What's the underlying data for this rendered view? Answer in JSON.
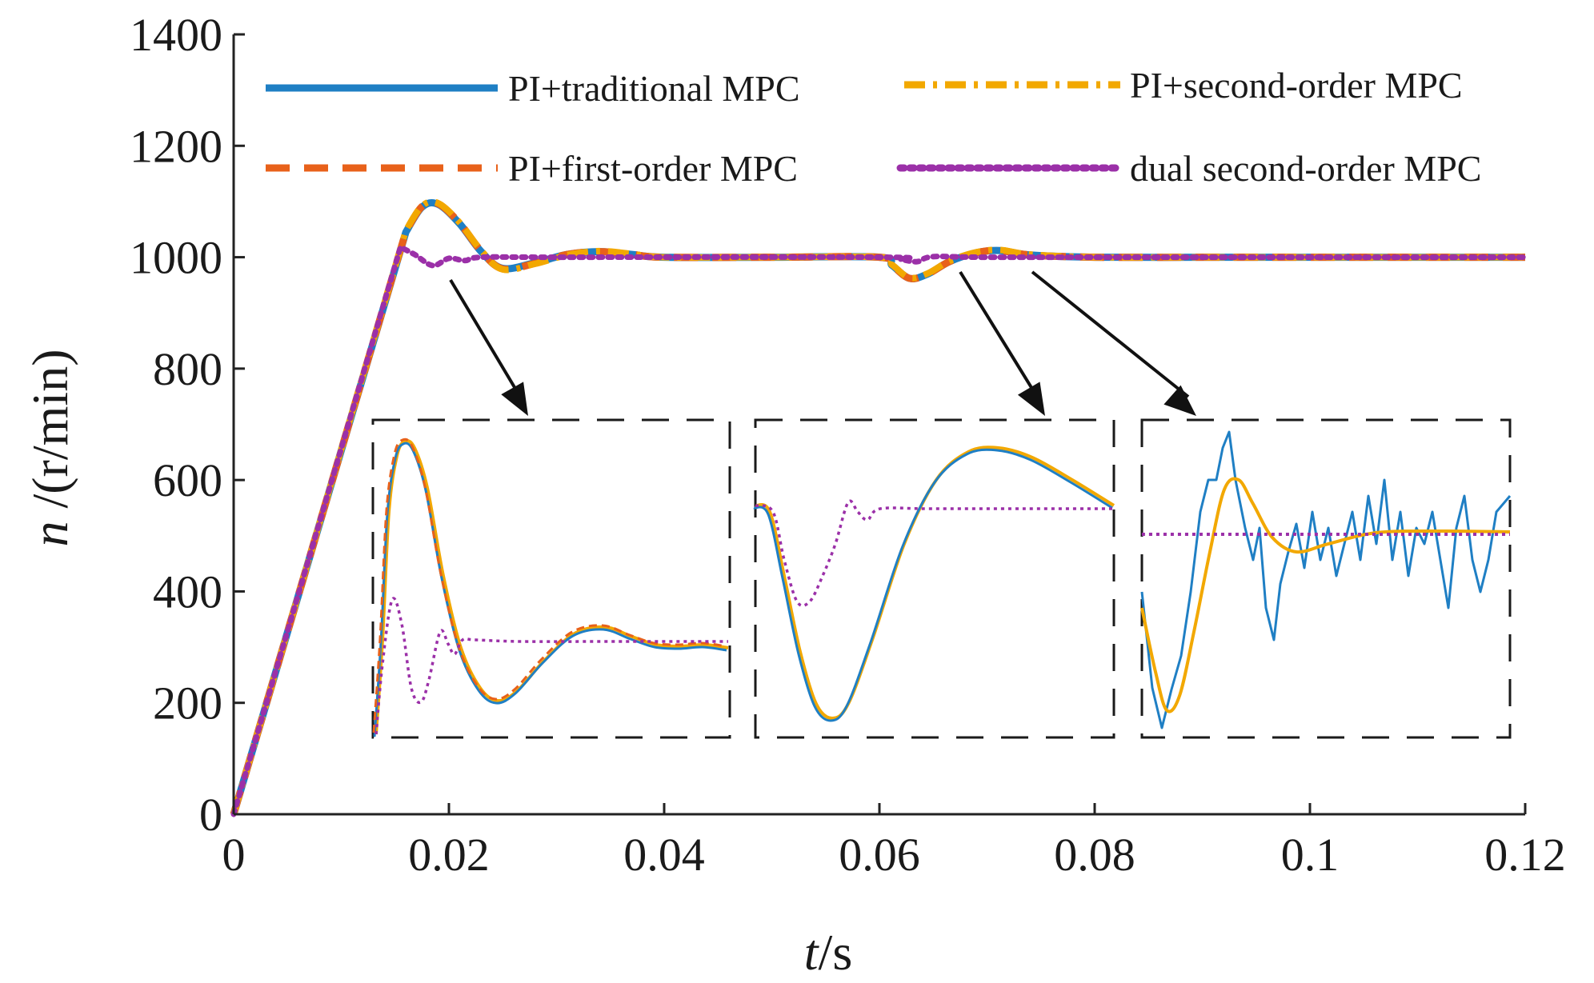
{
  "chart_data": {
    "type": "line",
    "title": "",
    "xlabel": {
      "var": "t",
      "unit": "/s"
    },
    "ylabel": {
      "var": "n",
      "unit": " /(r/min)"
    },
    "xlim": [
      0,
      0.12
    ],
    "ylim": [
      0,
      1400
    ],
    "xticks": [
      0,
      0.02,
      0.04,
      0.06,
      0.08,
      0.1,
      0.12
    ],
    "xtick_labels": [
      "0",
      "0.02",
      "0.04",
      "0.06",
      "0.08",
      "0.1",
      "0.12"
    ],
    "yticks": [
      0,
      200,
      400,
      600,
      800,
      1000,
      1200,
      1400
    ],
    "ytick_labels": [
      "0",
      "200",
      "400",
      "600",
      "800",
      "1000",
      "1200",
      "1400"
    ],
    "grid": false,
    "legend_position": "top",
    "series": [
      {
        "name": "PI+traditional MPC",
        "color": "#1f7fc4",
        "dash": "solid",
        "x": [
          0,
          0.016,
          0.0175,
          0.019,
          0.021,
          0.023,
          0.025,
          0.028,
          0.031,
          0.034,
          0.037,
          0.04,
          0.05,
          0.06,
          0.0612,
          0.0628,
          0.0645,
          0.0665,
          0.069,
          0.0712,
          0.074,
          0.08,
          0.09,
          0.1,
          0.11,
          0.12
        ],
        "y": [
          0,
          1045,
          1090,
          1095,
          1060,
          1010,
          980,
          990,
          1005,
          1010,
          1005,
          1000,
          1000,
          1000,
          985,
          962,
          970,
          992,
          1008,
          1012,
          1004,
          1000,
          1000,
          1000,
          1000,
          1000
        ]
      },
      {
        "name": "PI+second-order MPC",
        "color": "#f2a800",
        "dash": "dashdot",
        "x": [
          0,
          0.016,
          0.0175,
          0.019,
          0.021,
          0.023,
          0.025,
          0.028,
          0.031,
          0.034,
          0.037,
          0.04,
          0.05,
          0.06,
          0.0612,
          0.0628,
          0.0645,
          0.0665,
          0.069,
          0.0712,
          0.074,
          0.08,
          0.09,
          0.1,
          0.11,
          0.12
        ],
        "y": [
          0,
          1048,
          1092,
          1097,
          1062,
          1012,
          978,
          988,
          1004,
          1011,
          1006,
          1000,
          1000,
          1000,
          986,
          963,
          971,
          993,
          1009,
          1013,
          1005,
          1000,
          1000,
          1000,
          1000,
          1000
        ]
      },
      {
        "name": "PI+first-order MPC",
        "color": "#e8611a",
        "dash": "dashed",
        "x": [
          0,
          0.016,
          0.0175,
          0.019,
          0.021,
          0.023,
          0.025,
          0.028,
          0.031,
          0.034,
          0.037,
          0.04,
          0.05,
          0.06,
          0.0612,
          0.0628,
          0.0645,
          0.0665,
          0.069,
          0.0712,
          0.074,
          0.08,
          0.09,
          0.1,
          0.11,
          0.12
        ],
        "y": [
          0,
          1046,
          1091,
          1096,
          1061,
          1011,
          979,
          989,
          1005,
          1010,
          1005,
          1000,
          1000,
          1000,
          985,
          962,
          970,
          992,
          1008,
          1012,
          1004,
          1000,
          1000,
          1000,
          1000,
          1000
        ]
      },
      {
        "name": "dual second-order MPC",
        "color": "#9b30a8",
        "dash": "dotted",
        "x": [
          0,
          0.0155,
          0.0168,
          0.0185,
          0.02,
          0.0215,
          0.023,
          0.03,
          0.06,
          0.062,
          0.0635,
          0.065,
          0.07,
          0.09,
          0.1,
          0.11,
          0.12
        ],
        "y": [
          0,
          1018,
          1005,
          985,
          998,
          994,
          1000,
          1000,
          1000,
          996,
          992,
          1001,
          1000,
          1000,
          1000,
          1000,
          1000
        ]
      }
    ]
  }
}
